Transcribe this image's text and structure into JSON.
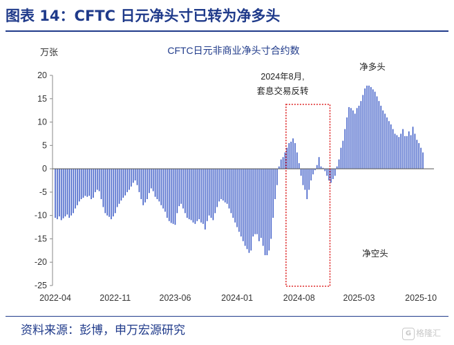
{
  "header": {
    "title": "图表 14：CFTC 日元净头寸已转为净多头"
  },
  "footer": {
    "source": "资料来源：彭博，申万宏源研究"
  },
  "watermark": {
    "text": "格隆汇",
    "logo": "G"
  },
  "chart_data": {
    "type": "bar",
    "title": "CFTC日元非商业净头寸合约数",
    "ylabel": "万张",
    "ylim": [
      -25,
      20
    ],
    "yticks": [
      20,
      15,
      10,
      5,
      0,
      -5,
      -10,
      -15,
      -20,
      -25
    ],
    "xtick_labels": [
      "2022-04",
      "2022-11",
      "2023-06",
      "2024-01",
      "2024-08",
      "2025-03",
      "2025-10"
    ],
    "xtick_weeks": [
      0,
      30,
      60,
      91,
      122,
      152,
      183
    ],
    "annotations": {
      "reversal": "2024年8月,\n套息交易反转",
      "net_long": "净多头",
      "net_short": "净空头"
    },
    "highlight_weeks": [
      116,
      137
    ],
    "grid": false,
    "bar_color": "#3d5cc7",
    "highlight_color": "#dd2222",
    "values": [
      -10.5,
      -10.8,
      -10.2,
      -11,
      -10.6,
      -10.2,
      -9.8,
      -10.5,
      -10,
      -9.5,
      -8.5,
      -7.8,
      -7,
      -6.5,
      -6.2,
      -5.8,
      -6,
      -5.8,
      -6.5,
      -6.2,
      -5,
      -4.5,
      -4.8,
      -6.5,
      -8.2,
      -9.5,
      -10,
      -10.3,
      -10.8,
      -10.2,
      -9.5,
      -8.2,
      -7.5,
      -6.8,
      -6.2,
      -5.7,
      -5,
      -4.5,
      -3.8,
      -3,
      -2.5,
      -3.5,
      -5,
      -6.5,
      -7.8,
      -7.2,
      -6.5,
      -5.2,
      -4.2,
      -4.8,
      -6,
      -6.5,
      -7,
      -7.8,
      -8.5,
      -9.2,
      -10.5,
      -11.2,
      -11.6,
      -11.8,
      -12,
      -9.5,
      -8,
      -7.5,
      -8.5,
      -9.5,
      -10.5,
      -10.8,
      -11,
      -11.5,
      -11.8,
      -11.2,
      -10.8,
      -11.5,
      -11.8,
      -13,
      -11.2,
      -10,
      -10.5,
      -11,
      -9.5,
      -8.2,
      -7,
      -6.5,
      -6.8,
      -7.2,
      -7.5,
      -8.5,
      -9.5,
      -10.5,
      -11.5,
      -12.5,
      -13.5,
      -14.5,
      -15.5,
      -16.5,
      -17.2,
      -18,
      -17.5,
      -14.5,
      -14,
      -14,
      -15.5,
      -14.8,
      -16.5,
      -18.5,
      -18.5,
      -17.5,
      -15,
      -10.5,
      -6.5,
      -3.5,
      0.5,
      2,
      2.5,
      3.5,
      4.5,
      5.5,
      5.8,
      6.5,
      5.5,
      3.5,
      1.2,
      -1.5,
      -3.5,
      -4.5,
      -6.5,
      -4.5,
      -2.5,
      -1.2,
      -0.3,
      0.8,
      2.5,
      0.5,
      0.2,
      -0.5,
      -1.5,
      -2.5,
      -3,
      -2.2,
      -1.5,
      0.5,
      2,
      4.5,
      6,
      8.5,
      11,
      13.2,
      13,
      12.5,
      11.8,
      13,
      13.5,
      14.5,
      15.8,
      17.2,
      17.8,
      17.8,
      17.5,
      17,
      16.5,
      15.5,
      14.5,
      13.5,
      12.5,
      11.8,
      11,
      10.2,
      9.5,
      8.5,
      7.5,
      7.2,
      6.8,
      7.5,
      8.5,
      7,
      7,
      8,
      7.2,
      9,
      7.5,
      6.2,
      5.5,
      4.5,
      3.5
    ]
  }
}
